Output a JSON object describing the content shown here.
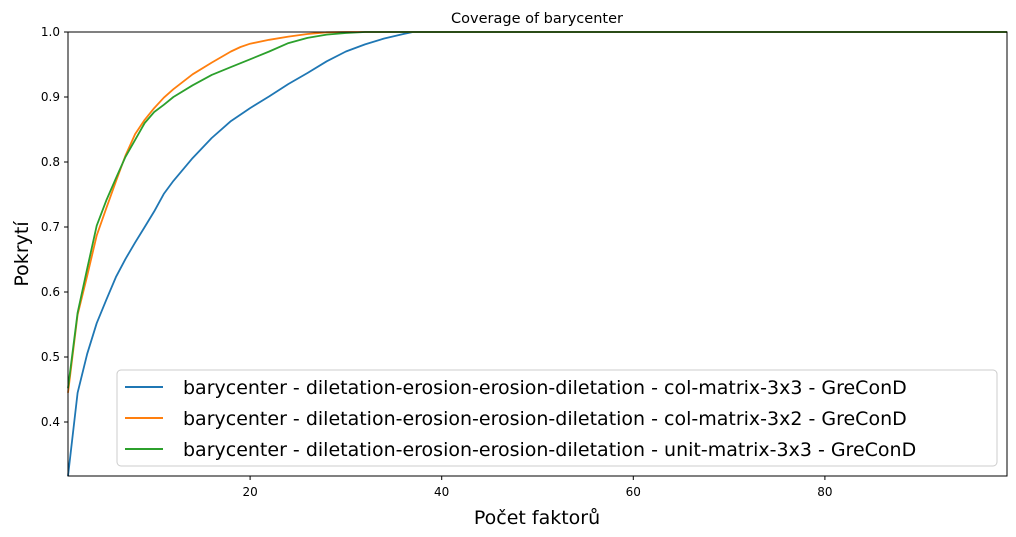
{
  "chart_data": {
    "type": "line",
    "title": "Coverage of barycenter",
    "xlabel": "Počet faktorů",
    "ylabel": "Pokrytí",
    "xlim": [
      1,
      99
    ],
    "ylim": [
      0.317,
      1.0
    ],
    "xticks": [
      20,
      40,
      60,
      80
    ],
    "yticks": [
      0.4,
      0.5,
      0.6,
      0.7,
      0.8,
      0.9,
      1.0
    ],
    "xtick_labels": [
      "20",
      "40",
      "60",
      "80"
    ],
    "ytick_labels": [
      "0.4",
      "0.5",
      "0.6",
      "0.7",
      "0.8",
      "0.9",
      "1.0"
    ],
    "grid": false,
    "legend_position": "lower-right",
    "series": [
      {
        "name": "barycenter - diletation-erosion-erosion-diletation - col-matrix-3x3 - GreConD",
        "color": "#1f77b4",
        "x": [
          1,
          2,
          3,
          4,
          5,
          6,
          7,
          8,
          9,
          10,
          11,
          12,
          14,
          16,
          18,
          20,
          22,
          24,
          26,
          28,
          30,
          32,
          34,
          36,
          37,
          38,
          40,
          50,
          60,
          70,
          80,
          90,
          99
        ],
        "y": [
          0.317,
          0.445,
          0.505,
          0.552,
          0.588,
          0.623,
          0.651,
          0.676,
          0.7,
          0.724,
          0.751,
          0.771,
          0.806,
          0.837,
          0.863,
          0.883,
          0.901,
          0.92,
          0.937,
          0.955,
          0.97,
          0.981,
          0.99,
          0.997,
          1.0,
          1.0,
          1.0,
          1.0,
          1.0,
          1.0,
          1.0,
          1.0,
          1.0
        ]
      },
      {
        "name": "barycenter - diletation-erosion-erosion-diletation - col-matrix-3x2 - GreConD",
        "color": "#ff7f0e",
        "x": [
          1,
          2,
          3,
          4,
          5,
          6,
          7,
          8,
          9,
          10,
          11,
          12,
          14,
          16,
          18,
          19,
          20,
          22,
          24,
          26,
          28,
          30,
          40,
          50,
          60,
          70,
          80,
          90,
          99
        ],
        "y": [
          0.445,
          0.565,
          0.625,
          0.687,
          0.729,
          0.77,
          0.81,
          0.843,
          0.865,
          0.883,
          0.899,
          0.912,
          0.935,
          0.953,
          0.97,
          0.977,
          0.982,
          0.988,
          0.993,
          0.997,
          0.9995,
          1.0,
          1.0,
          1.0,
          1.0,
          1.0,
          1.0,
          1.0,
          1.0
        ]
      },
      {
        "name": "barycenter - diletation-erosion-erosion-diletation - unit-matrix-3x3 - GreConD",
        "color": "#2ca02c",
        "x": [
          1,
          2,
          3,
          4,
          5,
          6,
          7,
          8,
          9,
          10,
          11,
          12,
          14,
          16,
          18,
          20,
          22,
          24,
          26,
          28,
          30,
          32,
          40,
          50,
          60,
          70,
          80,
          90,
          99
        ],
        "y": [
          0.452,
          0.568,
          0.636,
          0.702,
          0.741,
          0.775,
          0.808,
          0.834,
          0.86,
          0.877,
          0.888,
          0.9,
          0.918,
          0.934,
          0.946,
          0.958,
          0.97,
          0.983,
          0.991,
          0.996,
          0.9985,
          1.0,
          1.0,
          1.0,
          1.0,
          1.0,
          1.0,
          1.0,
          1.0
        ]
      }
    ]
  }
}
